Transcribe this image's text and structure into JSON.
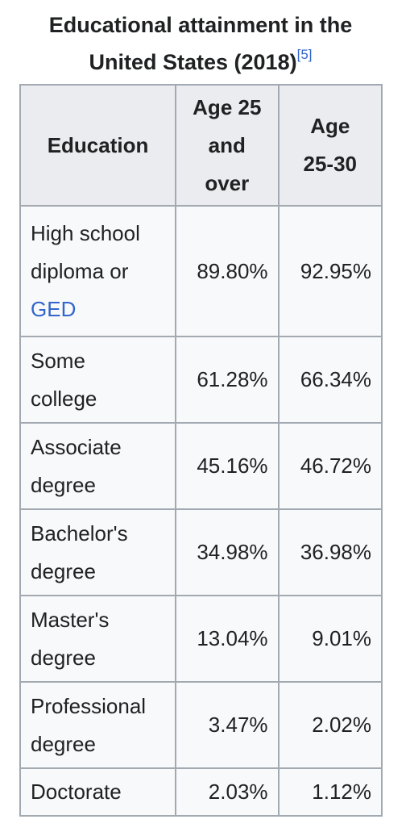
{
  "caption": {
    "title_line1": "Educational attainment in the",
    "title_line2": "United States (2018)",
    "reference": "[5]"
  },
  "table": {
    "headers": {
      "education": "Education",
      "age25over_line1": "Age 25",
      "age25over_line2": "and",
      "age25over_line3": "over",
      "age2530_line1": "Age",
      "age2530_line2": "25-30"
    },
    "rows": [
      {
        "label_line1": "High school",
        "label_line2": "diploma or",
        "label_link": "GED",
        "age25over": "89.80%",
        "age2530": "92.95%"
      },
      {
        "label_line1": "Some",
        "label_line2": "college",
        "age25over": "61.28%",
        "age2530": "66.34%"
      },
      {
        "label_line1": "Associate",
        "label_line2": "degree",
        "age25over": "45.16%",
        "age2530": "46.72%"
      },
      {
        "label_line1": "Bachelor's",
        "label_line2": "degree",
        "age25over": "34.98%",
        "age2530": "36.98%"
      },
      {
        "label_line1": "Master's",
        "label_line2": "degree",
        "age25over": "13.04%",
        "age2530": "9.01%"
      },
      {
        "label_line1": "Professional",
        "label_line2": "degree",
        "age25over": "3.47%",
        "age2530": "2.02%"
      },
      {
        "label_line1": "Doctorate",
        "age25over": "2.03%",
        "age2530": "1.12%"
      }
    ]
  }
}
